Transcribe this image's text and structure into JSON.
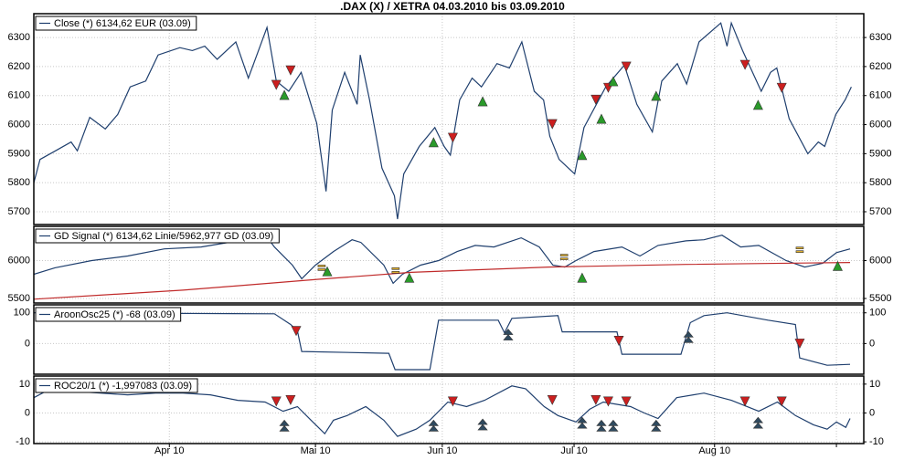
{
  "chart_data": [
    {
      "type": "line",
      "title": ".DAX (X) / XETRA 04.03.2010 bis 03.09.2010",
      "xlim": [
        0,
        133.5
      ],
      "ylim": [
        5656,
        6382
      ],
      "yticks": [
        5700,
        5800,
        5900,
        6000,
        6100,
        6200,
        6300
      ],
      "grid": true,
      "series": [
        {
          "name": "Close (*) 6134,62 EUR (03.09)",
          "color": "#1f3f6e",
          "x": [
            0,
            1,
            3.5,
            6,
            7,
            9,
            11.5,
            13.5,
            15.5,
            18,
            20,
            23.5,
            25.5,
            27.5,
            29.5,
            32.5,
            34.5,
            37.5,
            39,
            41,
            43,
            45.5,
            47,
            48,
            50,
            52,
            52.5,
            54,
            56,
            58,
            58.5,
            59.5,
            62,
            64.5,
            66,
            67,
            68.5,
            70.5,
            72,
            74.5,
            76.5,
            78.5,
            80.5,
            82,
            83,
            84.5,
            87,
            88.5,
            92,
            95,
            97,
            99.5,
            101,
            103.5,
            105,
            107,
            110.5,
            111.5,
            112.2,
            114,
            117,
            118.5,
            119.5,
            121.5,
            124.5,
            126.2,
            127.2,
            129,
            130.5,
            131.5
          ],
          "values": [
            5800,
            5880,
            5910,
            5940,
            5910,
            6025,
            5985,
            6035,
            6130,
            6150,
            6240,
            6265,
            6255,
            6270,
            6225,
            6285,
            6160,
            6335,
            6150,
            6115,
            6180,
            6005,
            5770,
            6050,
            6180,
            6070,
            6240,
            6085,
            5850,
            5755,
            5675,
            5830,
            5925,
            5990,
            5925,
            5895,
            6085,
            6160,
            6130,
            6210,
            6195,
            6285,
            6115,
            6085,
            5960,
            5880,
            5830,
            5990,
            6130,
            6205,
            6070,
            5975,
            6150,
            6210,
            6140,
            6285,
            6350,
            6270,
            6350,
            6255,
            6115,
            6180,
            6195,
            6020,
            5900,
            5940,
            5925,
            6035,
            6085,
            6130
          ]
        }
      ],
      "markers": [
        {
          "shape": "down",
          "color": "#cc1f1f",
          "x": [
            39,
            41.3,
            67.4,
            83.4,
            90.4,
            92.4,
            95.3,
            114.4,
            120.3
          ],
          "values": [
            6137,
            6187,
            5955,
            6002,
            6086,
            6127,
            6200,
            6206,
            6127
          ]
        },
        {
          "shape": "up",
          "color": "#2a9a2a",
          "x": [
            40.3,
            64.3,
            72.2,
            88.2,
            91.3,
            93.2,
            100.1,
            116.5
          ],
          "values": [
            6102,
            5939,
            6080,
            5895,
            6020,
            6149,
            6099,
            6068
          ]
        }
      ]
    },
    {
      "type": "line",
      "xlim": [
        0,
        133.5
      ],
      "ylim": [
        5440,
        6452
      ],
      "yticks": [
        5500,
        6000
      ],
      "grid": true,
      "series": [
        {
          "name": "GD Signal (*) 6134,62 Linie/5962,977 GD (03.09)",
          "color": "#1f3f6e",
          "x": [
            0,
            3.4,
            9.3,
            15.1,
            21,
            26.9,
            31.3,
            37.2,
            38.7,
            41.6,
            43.1,
            45.3,
            48.2,
            51.2,
            52.6,
            56.3,
            57.8,
            59.3,
            62.2,
            65.1,
            68.1,
            71,
            74,
            78.4,
            81.3,
            83.5,
            85.4,
            87.2,
            90.1,
            94.6,
            97.5,
            100.4,
            104.9,
            107.8,
            110.7,
            113.7,
            116.6,
            121,
            124,
            126.9,
            129.1,
            131.3
          ],
          "values": [
            5820,
            5905,
            6000,
            6060,
            6155,
            6180,
            6240,
            6345,
            6180,
            5940,
            5760,
            5940,
            6120,
            6275,
            6240,
            5940,
            5700,
            5820,
            5940,
            6000,
            6120,
            6200,
            6180,
            6300,
            6180,
            5940,
            5915,
            6000,
            6120,
            6180,
            6060,
            6200,
            6260,
            6275,
            6335,
            6180,
            6200,
            6000,
            5915,
            5965,
            6105,
            6155
          ]
        },
        {
          "color": "#c02a2a",
          "x": [
            0,
            24,
            46,
            60.7,
            82.8,
            104.9,
            131.3
          ],
          "values": [
            5490,
            5610,
            5755,
            5845,
            5915,
            5950,
            5975
          ]
        }
      ],
      "markers": [
        {
          "shape": "up",
          "color": "#2a9a2a",
          "x": [
            47.2,
            60.4,
            88.2,
            129.3
          ],
          "values": [
            5857,
            5774,
            5774,
            5929
          ]
        },
        {
          "shape": "equal",
          "color": "#e0b030",
          "x": [
            46.3,
            58.2,
            85.3,
            123.2
          ],
          "values": [
            5905,
            5870,
            6048,
            6143
          ]
        }
      ]
    },
    {
      "type": "line",
      "xlim": [
        0,
        133.5
      ],
      "ylim": [
        -100,
        126
      ],
      "yticks": [
        0,
        100
      ],
      "grid": true,
      "series": [
        {
          "name": "AroonOsc25 (*) -68 (03.09)",
          "color": "#1f3f6e",
          "x": [
            0,
            38.7,
            41.3,
            42.4,
            43.1,
            57.1,
            58.1,
            63.7,
            65.1,
            74.7,
            75.7,
            76.9,
            84.3,
            85,
            93.8,
            94.6,
            104.1,
            105.6,
            107.8,
            111.5,
            118.1,
            122.5,
            123.2,
            127.6,
            131.3
          ],
          "values": [
            100,
            97,
            62,
            41,
            -26,
            -32,
            -85,
            -85,
            76,
            76,
            35,
            82,
            91,
            38,
            38,
            -35,
            -35,
            68,
            91,
            100,
            76,
            62,
            -47,
            -71,
            -68
          ]
        }
      ],
      "markers": [
        {
          "shape": "down",
          "color": "#cc1f1f",
          "x": [
            42.2,
            94.1,
            123.2
          ],
          "values": [
            41,
            9,
            0
          ]
        },
        {
          "shape": "double-up",
          "color": "#2f4a5f",
          "x": [
            76.3,
            105.3
          ],
          "values": [
            29,
            21
          ]
        }
      ]
    },
    {
      "type": "line",
      "xlim": [
        0,
        133.5
      ],
      "ylim": [
        -10.6,
        12.8
      ],
      "yticks": [
        -10,
        0,
        10
      ],
      "grid": true,
      "xticks": [
        {
          "value": 21.8,
          "label": "Apr 10"
        },
        {
          "value": 45.3,
          "label": "Mai 10"
        },
        {
          "value": 65.7,
          "label": "Jun 10"
        },
        {
          "value": 86.9,
          "label": "Jul 10"
        },
        {
          "value": 109.5,
          "label": "Aug 10"
        },
        {
          "value": 129.1,
          "label": null
        }
      ],
      "series": [
        {
          "name": "ROC20/1 (*) -1,997083 (03.09)",
          "color": "#1f3f6e",
          "x": [
            0,
            1.9,
            6.3,
            10.7,
            15.1,
            19.6,
            24,
            28.4,
            32.8,
            37.2,
            40.1,
            42.4,
            44.6,
            46.8,
            48.2,
            50.4,
            53.4,
            56.3,
            58.5,
            61.5,
            63.7,
            66.6,
            69.6,
            72.5,
            76.9,
            79.1,
            82.1,
            84.3,
            87.2,
            89.4,
            91.6,
            96,
            98.2,
            100.4,
            103.4,
            107.8,
            112.2,
            116.6,
            119.6,
            122.5,
            125.4,
            127.6,
            129.1,
            130.6,
            131.3
          ],
          "values": [
            5.3,
            7.5,
            7.5,
            6.9,
            6.3,
            6.9,
            6.9,
            6.3,
            4.4,
            3.8,
            0.6,
            2.2,
            -2.5,
            -7.2,
            -2.5,
            -0.9,
            2.2,
            -2.5,
            -8.1,
            -5.6,
            -2.5,
            3.8,
            2.2,
            4.4,
            9.4,
            8.4,
            2.2,
            -0.9,
            -3.1,
            1.3,
            3.8,
            2.2,
            0,
            -1.9,
            5.3,
            6.9,
            4.4,
            0.6,
            3.8,
            -0.9,
            -4.1,
            -5.6,
            -3.1,
            -5,
            -1.9
          ]
        }
      ],
      "markers": [
        {
          "shape": "down",
          "color": "#cc1f1f",
          "x": [
            39,
            41.3,
            67.4,
            83.4,
            90.4,
            92.4,
            95.3,
            114.4,
            120.3
          ],
          "values": [
            4,
            4.5,
            4,
            4.5,
            4.5,
            4,
            4,
            4,
            4
          ]
        },
        {
          "shape": "double-up",
          "color": "#2f4a5f",
          "x": [
            40.3,
            64.3,
            72.2,
            88.2,
            91.3,
            93.2,
            100.1,
            116.5
          ],
          "values": [
            -4.4,
            -4.4,
            -4,
            -3.4,
            -4.4,
            -4.4,
            -4.4,
            -3.4
          ]
        }
      ]
    }
  ]
}
